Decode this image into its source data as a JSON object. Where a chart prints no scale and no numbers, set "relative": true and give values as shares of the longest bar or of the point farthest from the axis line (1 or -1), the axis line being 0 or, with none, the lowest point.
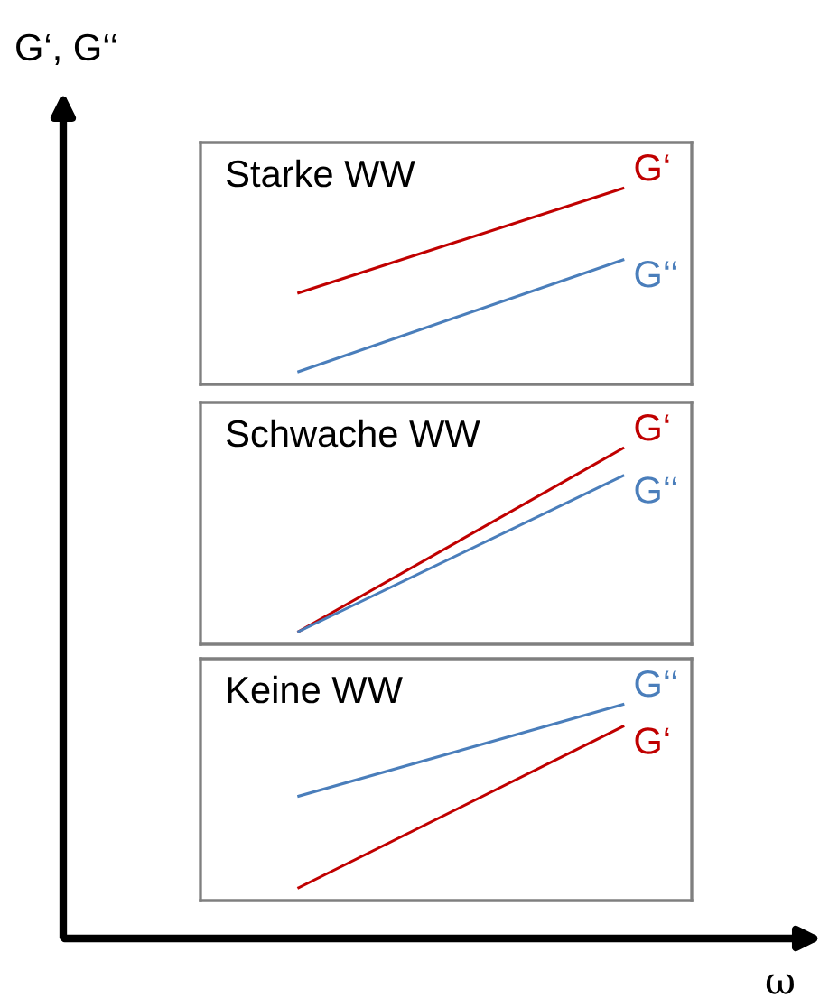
{
  "chart_data": [
    {
      "type": "other",
      "xlabel": "ω",
      "ylabel": "G‘, G‘‘"
    },
    {
      "type": "line",
      "title": "Starke WW",
      "relative": true,
      "categories": [
        null,
        null
      ],
      "series": [
        {
          "name": "G‘",
          "color": "#c00000",
          "values": [
            0.43,
            1
          ]
        },
        {
          "name": "G‘‘",
          "color": "#4a7ebb",
          "values": [
            0,
            0.61
          ]
        }
      ]
    },
    {
      "type": "line",
      "title": "Schwache WW",
      "relative": true,
      "categories": [
        null,
        null
      ],
      "series": [
        {
          "name": "G‘",
          "color": "#c00000",
          "values": [
            0,
            1
          ]
        },
        {
          "name": "G‘‘",
          "color": "#4a7ebb",
          "values": [
            0,
            0.85
          ]
        }
      ]
    },
    {
      "type": "line",
      "title": "Keine WW",
      "relative": true,
      "categories": [
        null,
        null
      ],
      "series": [
        {
          "name": "G‘‘",
          "color": "#4a7ebb",
          "values": [
            0.5,
            1
          ]
        },
        {
          "name": "G‘",
          "color": "#c00000",
          "values": [
            0,
            0.88
          ]
        }
      ]
    }
  ]
}
